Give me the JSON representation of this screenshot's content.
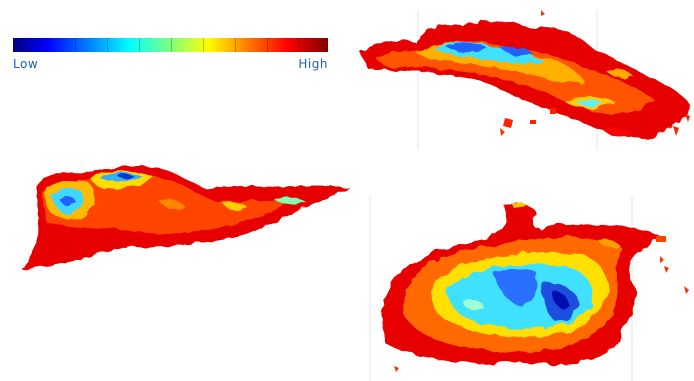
{
  "legend": {
    "low_label": "Low",
    "high_label": "High",
    "colormap": "jet",
    "colors": [
      "#00007f",
      "#0000ff",
      "#0080ff",
      "#00ffff",
      "#7fff7f",
      "#ffff00",
      "#ff8000",
      "#ff0000",
      "#7f0000"
    ]
  },
  "maps": [
    {
      "id": "top-right",
      "description_shape": "elongated island"
    },
    {
      "id": "middle-left",
      "description_shape": "peninsula island"
    },
    {
      "id": "bottom-right",
      "description_shape": "irregular island"
    }
  ]
}
